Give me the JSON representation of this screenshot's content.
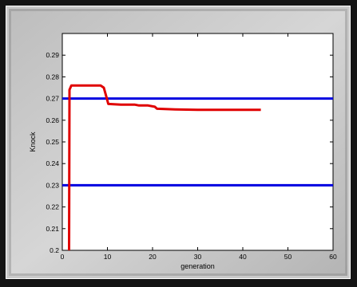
{
  "chart_data": {
    "type": "line",
    "xlabel": "generation",
    "ylabel": "Knock",
    "xlim": [
      0,
      60
    ],
    "ylim": [
      0.2,
      0.3
    ],
    "x_ticks": [
      0,
      10,
      20,
      30,
      40,
      50,
      60
    ],
    "y_ticks": [
      0.2,
      0.21,
      0.22,
      0.23,
      0.24,
      0.25,
      0.26,
      0.27,
      0.28,
      0.29
    ],
    "grid": false,
    "series": [
      {
        "color": "#e00000",
        "points": [
          [
            1.5,
            0.2
          ],
          [
            1.6,
            0.274
          ],
          [
            2.0,
            0.276
          ],
          [
            5,
            0.276
          ],
          [
            8.5,
            0.276
          ],
          [
            9.2,
            0.275
          ],
          [
            9.8,
            0.2705
          ],
          [
            10.2,
            0.2675
          ],
          [
            13,
            0.2672
          ],
          [
            16,
            0.2672
          ],
          [
            17,
            0.2668
          ],
          [
            19,
            0.2668
          ],
          [
            20.5,
            0.2662
          ],
          [
            21,
            0.2653
          ],
          [
            25,
            0.265
          ],
          [
            30,
            0.2648
          ],
          [
            35,
            0.2648
          ],
          [
            40,
            0.2648
          ],
          [
            44,
            0.2648
          ]
        ]
      }
    ],
    "hlines": [
      {
        "y": 0.27,
        "color": "#0000e0"
      },
      {
        "y": 0.23,
        "color": "#0000e0"
      }
    ]
  }
}
